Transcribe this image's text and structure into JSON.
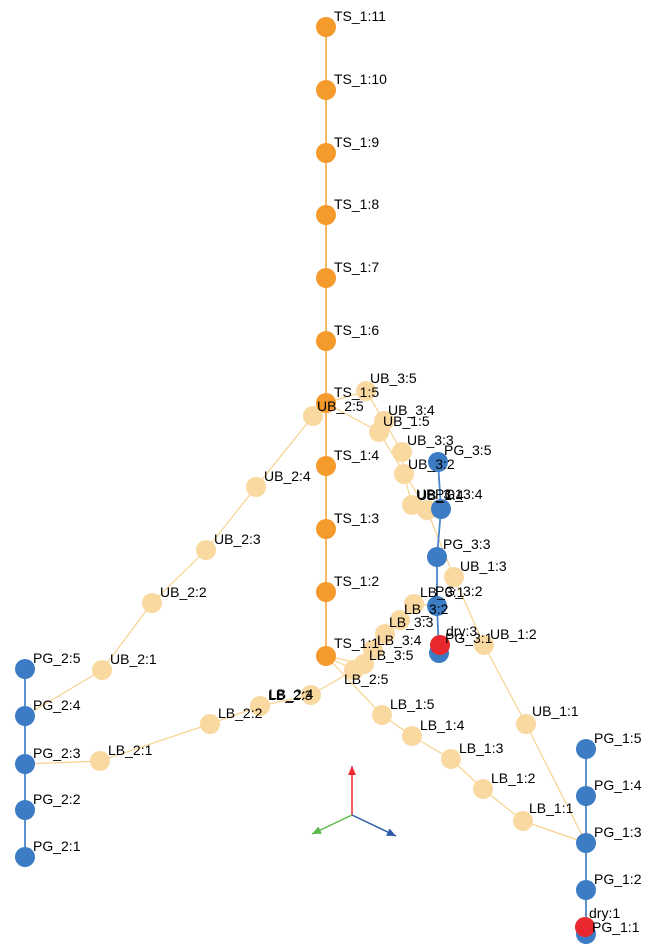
{
  "colors": {
    "ts_node": "#f59a2c",
    "ts_edge": "#f5a640",
    "branch_node": "#fad9a0",
    "branch_edge": "#f7d28e",
    "pg_node": "#3b7cc4",
    "pg_edge": "#4a86c8",
    "dry_node": "#e8282e",
    "axis_z": "#e8282e",
    "axis_x": "#2c5aa8",
    "axis_y": "#5ab84a"
  },
  "nodes": [
    {
      "id": "TS_1:11",
      "label": "TS_1:11",
      "group": "ts"
    },
    {
      "id": "TS_1:10",
      "label": "TS_1:10",
      "group": "ts"
    },
    {
      "id": "TS_1:9",
      "label": "TS_1:9",
      "group": "ts"
    },
    {
      "id": "TS_1:8",
      "label": "TS_1:8",
      "group": "ts"
    },
    {
      "id": "TS_1:7",
      "label": "TS_1:7",
      "group": "ts"
    },
    {
      "id": "TS_1:6",
      "label": "TS_1:6",
      "group": "ts"
    },
    {
      "id": "TS_1:5",
      "label": "TS_1:5",
      "group": "ts"
    },
    {
      "id": "TS_1:4",
      "label": "TS_1:4",
      "group": "ts"
    },
    {
      "id": "TS_1:3",
      "label": "TS_1:3",
      "group": "ts"
    },
    {
      "id": "TS_1:2",
      "label": "TS_1:2",
      "group": "ts"
    },
    {
      "id": "TS_1:1",
      "label": "TS_1:1",
      "group": "ts"
    },
    {
      "id": "UB_2:5",
      "label": "UB_2:5",
      "group": "branch"
    },
    {
      "id": "UB_2:4",
      "label": "UB_2:4",
      "group": "branch"
    },
    {
      "id": "UB_2:3",
      "label": "UB_2:3",
      "group": "branch"
    },
    {
      "id": "UB_2:2",
      "label": "UB_2:2",
      "group": "branch"
    },
    {
      "id": "UB_2:1",
      "label": "UB_2:1",
      "group": "branch"
    },
    {
      "id": "LB_2:5",
      "label": "LB_2:5",
      "group": "branch"
    },
    {
      "id": "LB_2:4",
      "label": "LB_2:4",
      "group": "branch"
    },
    {
      "id": "LB_2:3",
      "label": "LB_2:3",
      "group": "branch"
    },
    {
      "id": "LB_2:2",
      "label": "LB_2:2",
      "group": "branch"
    },
    {
      "id": "LB_2:1",
      "label": "LB_2:1",
      "group": "branch"
    },
    {
      "id": "PG_2:5",
      "label": "PG_2:5",
      "group": "pg"
    },
    {
      "id": "PG_2:4",
      "label": "PG_2:4",
      "group": "pg"
    },
    {
      "id": "PG_2:3",
      "label": "PG_2:3",
      "group": "pg"
    },
    {
      "id": "PG_2:2",
      "label": "PG_2:2",
      "group": "pg"
    },
    {
      "id": "PG_2:1",
      "label": "PG_2:1",
      "group": "pg"
    },
    {
      "id": "UB_3:5",
      "label": "UB_3:5",
      "group": "branch"
    },
    {
      "id": "UB_3:4",
      "label": "UB_3:4",
      "group": "branch"
    },
    {
      "id": "UB_3:3",
      "label": "UB_3:3",
      "group": "branch"
    },
    {
      "id": "UB_3:2",
      "label": "UB_3:2",
      "group": "branch"
    },
    {
      "id": "UB_3:1",
      "label": "UB_3:1",
      "group": "branch"
    },
    {
      "id": "UB_1:5",
      "label": "UB_1:5",
      "group": "branch"
    },
    {
      "id": "UB_1:4",
      "label": "UB_1:4",
      "group": "branch"
    },
    {
      "id": "UB_1:3",
      "label": "UB_1:3",
      "group": "branch"
    },
    {
      "id": "UB_1:2",
      "label": "UB_1:2",
      "group": "branch"
    },
    {
      "id": "UB_1:1",
      "label": "UB_1:1",
      "group": "branch"
    },
    {
      "id": "LB_3:5",
      "label": "LB_3:5",
      "group": "branch"
    },
    {
      "id": "LB_3:4",
      "label": "LB_3:4",
      "group": "branch"
    },
    {
      "id": "LB_3:3",
      "label": "LB_3:3",
      "group": "branch"
    },
    {
      "id": "LB_3:2",
      "label": "LB_3:2",
      "group": "branch"
    },
    {
      "id": "LB_3:1",
      "label": "LB_3:1",
      "group": "branch"
    },
    {
      "id": "LB_1:5",
      "label": "LB_1:5",
      "group": "branch"
    },
    {
      "id": "LB_1:4",
      "label": "LB_1:4",
      "group": "branch"
    },
    {
      "id": "LB_1:3",
      "label": "LB_1:3",
      "group": "branch"
    },
    {
      "id": "LB_1:2",
      "label": "LB_1:2",
      "group": "branch"
    },
    {
      "id": "LB_1:1",
      "label": "LB_1:1",
      "group": "branch"
    },
    {
      "id": "PG_3:5",
      "label": "PG_3:5",
      "group": "pg"
    },
    {
      "id": "PG_3:4",
      "label": "PG_3:4",
      "group": "pg"
    },
    {
      "id": "PG_3:3",
      "label": "PG_3:3",
      "group": "pg"
    },
    {
      "id": "PG_3:2",
      "label": "PG_3:2",
      "group": "pg"
    },
    {
      "id": "PG_3:1",
      "label": "PG_3:1",
      "group": "pg"
    },
    {
      "id": "dry:3",
      "label": "dry:3",
      "group": "dry"
    },
    {
      "id": "PG_1:5",
      "label": "PG_1:5",
      "group": "pg"
    },
    {
      "id": "PG_1:4",
      "label": "PG_1:4",
      "group": "pg"
    },
    {
      "id": "PG_1:3",
      "label": "PG_1:3",
      "group": "pg"
    },
    {
      "id": "PG_1:2",
      "label": "PG_1:2",
      "group": "pg"
    },
    {
      "id": "PG_1:1",
      "label": "PG_1:1",
      "group": "pg"
    },
    {
      "id": "dry:1",
      "label": "dry:1",
      "group": "dry"
    }
  ],
  "edges": [
    [
      "TS_1:11",
      "TS_1:10"
    ],
    [
      "TS_1:10",
      "TS_1:9"
    ],
    [
      "TS_1:9",
      "TS_1:8"
    ],
    [
      "TS_1:8",
      "TS_1:7"
    ],
    [
      "TS_1:7",
      "TS_1:6"
    ],
    [
      "TS_1:6",
      "TS_1:5"
    ],
    [
      "TS_1:5",
      "TS_1:4"
    ],
    [
      "TS_1:4",
      "TS_1:3"
    ],
    [
      "TS_1:3",
      "TS_1:2"
    ],
    [
      "TS_1:2",
      "TS_1:1"
    ],
    [
      "TS_1:5",
      "UB_2:5"
    ],
    [
      "UB_2:5",
      "UB_2:4"
    ],
    [
      "UB_2:4",
      "UB_2:3"
    ],
    [
      "UB_2:3",
      "UB_2:2"
    ],
    [
      "UB_2:2",
      "UB_2:1"
    ],
    [
      "UB_2:1",
      "PG_2:4"
    ],
    [
      "TS_1:1",
      "LB_2:5"
    ],
    [
      "LB_2:5",
      "LB_2:4"
    ],
    [
      "LB_2:4",
      "LB_2:3"
    ],
    [
      "LB_2:3",
      "LB_2:2"
    ],
    [
      "LB_2:2",
      "LB_2:1"
    ],
    [
      "LB_2:1",
      "PG_2:3"
    ],
    [
      "PG_2:5",
      "PG_2:4"
    ],
    [
      "PG_2:4",
      "PG_2:3"
    ],
    [
      "PG_2:3",
      "PG_2:2"
    ],
    [
      "PG_2:2",
      "PG_2:1"
    ],
    [
      "TS_1:5",
      "UB_3:5"
    ],
    [
      "UB_3:5",
      "UB_3:4"
    ],
    [
      "UB_3:4",
      "UB_3:3"
    ],
    [
      "UB_3:3",
      "UB_3:2"
    ],
    [
      "UB_3:2",
      "UB_3:1"
    ],
    [
      "UB_3:1",
      "PG_3:4"
    ],
    [
      "TS_1:5",
      "UB_1:5"
    ],
    [
      "UB_1:5",
      "UB_1:4"
    ],
    [
      "UB_1:4",
      "UB_1:3"
    ],
    [
      "UB_1:3",
      "UB_1:2"
    ],
    [
      "UB_1:2",
      "UB_1:1"
    ],
    [
      "UB_1:1",
      "PG_1:3"
    ],
    [
      "TS_1:1",
      "LB_3:5"
    ],
    [
      "LB_3:5",
      "LB_3:4"
    ],
    [
      "LB_3:4",
      "LB_3:3"
    ],
    [
      "LB_3:3",
      "LB_3:2"
    ],
    [
      "LB_3:2",
      "LB_3:1"
    ],
    [
      "LB_3:1",
      "PG_3:2"
    ],
    [
      "TS_1:1",
      "LB_1:5"
    ],
    [
      "LB_1:5",
      "LB_1:4"
    ],
    [
      "LB_1:4",
      "LB_1:3"
    ],
    [
      "LB_1:3",
      "LB_1:2"
    ],
    [
      "LB_1:2",
      "LB_1:1"
    ],
    [
      "LB_1:1",
      "PG_1:3"
    ],
    [
      "PG_3:5",
      "PG_3:4"
    ],
    [
      "PG_3:4",
      "PG_3:3"
    ],
    [
      "PG_3:3",
      "PG_3:2"
    ],
    [
      "PG_3:2",
      "PG_3:1"
    ],
    [
      "PG_3:1",
      "dry:3"
    ],
    [
      "PG_1:5",
      "PG_1:4"
    ],
    [
      "PG_1:4",
      "PG_1:3"
    ],
    [
      "PG_1:3",
      "PG_1:2"
    ],
    [
      "PG_1:2",
      "PG_1:1"
    ],
    [
      "PG_1:1",
      "dry:1"
    ]
  ]
}
